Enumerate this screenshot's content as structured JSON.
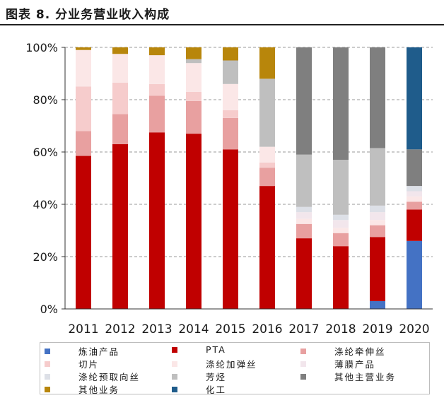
{
  "title": "图表 8. 分业务营业收入构成",
  "chart_data": {
    "type": "bar",
    "stacked": true,
    "title": "图表 8. 分业务营业收入构成",
    "categories": [
      "2011",
      "2012",
      "2013",
      "2014",
      "2015",
      "2016",
      "2017",
      "2018",
      "2019",
      "2020"
    ],
    "ylim": [
      0,
      100
    ],
    "yticks": [
      "0%",
      "20%",
      "40%",
      "60%",
      "80%",
      "100%"
    ],
    "grid": "horizontal-dashed",
    "legend_position": "bottom",
    "series": [
      {
        "name": "炼油产品",
        "color": "#4472c4",
        "values": [
          0,
          0,
          0,
          0,
          0,
          0,
          0,
          0,
          3,
          26
        ]
      },
      {
        "name": "PTA",
        "color": "#c00000",
        "values": [
          58.5,
          63,
          67.5,
          67,
          61,
          47,
          27,
          24,
          24.5,
          12
        ]
      },
      {
        "name": "涤纶牵伸丝",
        "color": "#e8a0a0",
        "values": [
          9.5,
          11.5,
          14,
          12.5,
          12,
          7,
          5.5,
          5,
          4.5,
          3
        ]
      },
      {
        "name": "切片",
        "color": "#f6cccc",
        "values": [
          17,
          12,
          4.5,
          3.5,
          3,
          2,
          0,
          0,
          0,
          0
        ]
      },
      {
        "name": "涤纶加弹丝",
        "color": "#fbe7e7",
        "values": [
          14,
          11,
          11,
          11,
          10,
          6,
          2,
          2,
          2,
          2
        ]
      },
      {
        "name": "薄膜产品",
        "color": "#f2e6ec",
        "values": [
          0,
          0,
          0,
          0,
          0,
          0,
          2.5,
          3,
          3,
          2
        ]
      },
      {
        "name": "涤纶预取向丝",
        "color": "#dde0e7",
        "values": [
          0,
          0,
          0,
          0,
          0,
          0,
          2,
          2,
          2.5,
          2
        ]
      },
      {
        "name": "芳烃",
        "color": "#bfbfbf",
        "values": [
          0,
          0,
          0,
          1.5,
          9,
          26,
          20,
          21,
          22,
          0
        ]
      },
      {
        "name": "其他主营业务",
        "color": "#7f7f7f",
        "values": [
          0,
          0,
          0,
          0,
          0,
          0,
          41,
          43,
          38.5,
          14
        ]
      },
      {
        "name": "其他业务",
        "color": "#b8860b",
        "values": [
          1,
          2.5,
          3,
          4.5,
          5,
          12,
          0,
          0,
          0,
          0
        ]
      },
      {
        "name": "化工",
        "color": "#1f5c8b",
        "values": [
          0,
          0,
          0,
          0,
          0,
          0,
          0,
          0,
          0,
          39
        ]
      }
    ]
  }
}
